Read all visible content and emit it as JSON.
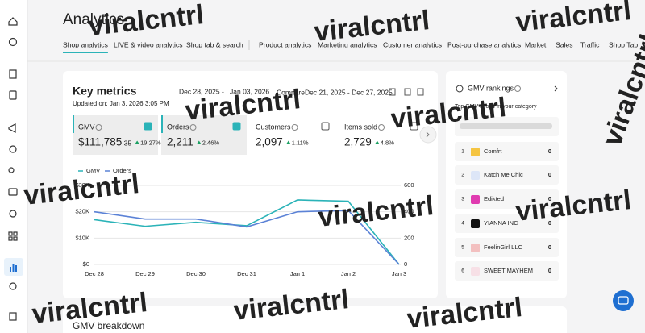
{
  "header": {
    "title": "Analytics"
  },
  "tabs": [
    "Shop analytics",
    "LIVE & video analytics",
    "Shop tab & search",
    "Product analytics",
    "Marketing analytics",
    "Customer analytics",
    "Post-purchase analytics",
    "Market",
    "Sales",
    "Traffic",
    "Shop Tab"
  ],
  "key_metrics": {
    "title": "Key metrics",
    "updated": "Updated on: Jan 3, 2026 3:05 PM",
    "date_start": "Dec 28, 2025",
    "date_sep": "-",
    "date_end": "Jan 03, 2026",
    "compare_label": "Compare",
    "compare_range": "Dec 21, 2025 - Dec 27, 2025",
    "metrics": [
      {
        "name": "GMV",
        "value": "$111,785",
        "value_decimal": ".35",
        "change": "19.27%"
      },
      {
        "name": "Orders",
        "value": "2,211",
        "change": "2.46%"
      },
      {
        "name": "Customers",
        "value": "2,097",
        "change": "1.11%"
      },
      {
        "name": "Items sold",
        "value": "2,729",
        "change": "4.8%"
      }
    ]
  },
  "chart_data": {
    "type": "line",
    "categories": [
      "Dec 28",
      "Dec 29",
      "Dec 30",
      "Dec 31",
      "Jan 1",
      "Jan 2",
      "Jan 3"
    ],
    "series": [
      {
        "name": "GMV",
        "color": "#2bb3b8",
        "values": [
          17000,
          14500,
          16000,
          14700,
          24500,
          24000,
          0
        ]
      },
      {
        "name": "Orders",
        "color": "#5b82d6",
        "axis": "y2",
        "values": [
          400,
          345,
          345,
          285,
          400,
          410,
          0
        ]
      }
    ],
    "ylim": [
      0,
      30000
    ],
    "yticks": [
      {
        "value": 0,
        "label": "$0"
      },
      {
        "value": 10000,
        "label": "$10K"
      },
      {
        "value": 20000,
        "label": "$20K"
      },
      {
        "value": 30000,
        "label": "$30K"
      }
    ],
    "y2lim": [
      0,
      600
    ],
    "y2ticks": [
      0,
      200,
      400,
      600
    ],
    "grid": true
  },
  "rankings": {
    "title": "GMV rankings",
    "subtitle": "Top GMV shops in your category",
    "rows": [
      {
        "rank": 1,
        "name": "Comfrt",
        "value": 0
      },
      {
        "rank": 2,
        "name": "Katch Me Chic",
        "value": 0
      },
      {
        "rank": 3,
        "name": "Edikted",
        "value": 0
      },
      {
        "rank": 4,
        "name": "YIANNA INC",
        "value": 0
      },
      {
        "rank": 5,
        "name": "FeelinGirl LLC",
        "value": 0
      },
      {
        "rank": 6,
        "name": "SWEET MAYHEM",
        "value": 0
      }
    ]
  },
  "breakdown": {
    "title": "GMV breakdown"
  },
  "watermark": "viralcntrl"
}
